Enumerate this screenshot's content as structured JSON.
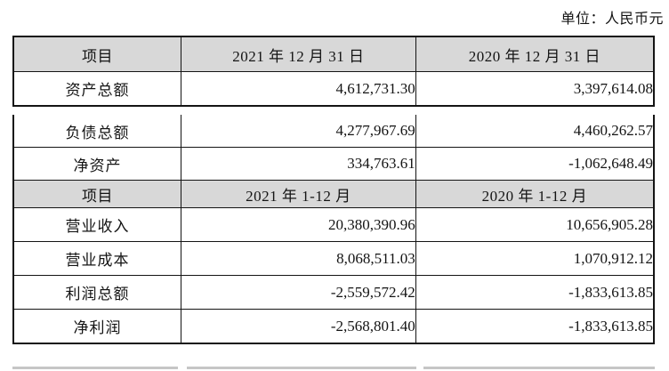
{
  "page": {
    "unit_label": "单位：人民币元"
  },
  "colors": {
    "header_bg": "#d8d8d8",
    "border": "#141414",
    "text": "#141414",
    "partial_row": "#b3b3b3"
  },
  "table_top": {
    "header": {
      "item": "项目",
      "date_2021": "2021 年 12 月 31 日",
      "date_2020": "2020 年 12 月 31 日"
    },
    "rows": [
      {
        "label": "资产总额",
        "v2021": "4,612,731.30",
        "v2020": "3,397,614.08"
      }
    ]
  },
  "table_bottom": {
    "balance_rows": [
      {
        "label": "负债总额",
        "v2021": "4,277,967.69",
        "v2020": "4,460,262.57"
      },
      {
        "label": "净资产",
        "v2021": "334,763.61",
        "v2020": "-1,062,648.49"
      }
    ],
    "header": {
      "item": "项目",
      "period_2021": "2021 年 1-12 月",
      "period_2020": "2020 年 1-12 月"
    },
    "income_rows": [
      {
        "label": "营业收入",
        "v2021": "20,380,390.96",
        "v2020": "10,656,905.28"
      },
      {
        "label": "营业成本",
        "v2021": "8,068,511.03",
        "v2020": "1,070,912.12"
      },
      {
        "label": "利润总额",
        "v2021": "-2,559,572.42",
        "v2020": "-1,833,613.85"
      },
      {
        "label": "净利润",
        "v2021": "-2,568,801.40",
        "v2020": "-1,833,613.85"
      }
    ]
  }
}
